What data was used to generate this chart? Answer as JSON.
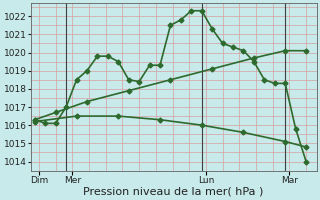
{
  "background_color": "#c8eaea",
  "grid_color": "#d4a0a0",
  "line_color": "#2d6a2d",
  "marker": "D",
  "markersize": 2.5,
  "linewidth": 1.2,
  "ylim": [
    1013.5,
    1022.7
  ],
  "yticks": [
    1014,
    1015,
    1016,
    1017,
    1018,
    1019,
    1020,
    1021,
    1022
  ],
  "xlabel": "Pression niveau de la mer( hPa )",
  "xlabel_fontsize": 8,
  "tick_fontsize": 6.5,
  "line1_x": [
    0,
    0.5,
    1.0,
    1.5,
    2.0,
    2.5,
    3.0,
    3.5,
    4.0,
    4.5,
    5.0,
    5.5,
    6.0,
    6.5,
    7.0,
    7.5,
    8.0,
    8.5,
    9.0,
    9.5,
    10.0,
    10.5,
    11.0,
    11.5,
    12.0,
    12.5,
    13.0
  ],
  "line1_y": [
    1016.3,
    1016.1,
    1016.1,
    1017.0,
    1018.5,
    1019.0,
    1019.8,
    1019.8,
    1019.5,
    1018.5,
    1018.4,
    1019.3,
    1019.3,
    1021.5,
    1021.8,
    1022.3,
    1022.3,
    1021.3,
    1020.5,
    1020.3,
    1020.1,
    1019.5,
    1018.5,
    1018.3,
    1018.3,
    1015.8,
    1014.0
  ],
  "line2_x": [
    0,
    1.0,
    2.5,
    4.5,
    6.5,
    8.5,
    10.5,
    12.0,
    13.0
  ],
  "line2_y": [
    1016.3,
    1016.7,
    1017.3,
    1017.9,
    1018.5,
    1019.1,
    1019.7,
    1020.1,
    1020.1
  ],
  "line3_x": [
    0,
    2.0,
    4.0,
    6.0,
    8.0,
    10.0,
    12.0,
    13.0
  ],
  "line3_y": [
    1016.2,
    1016.5,
    1016.5,
    1016.3,
    1016.0,
    1015.6,
    1015.1,
    1014.8
  ],
  "vline_positions": [
    1.5,
    8.0,
    12.0
  ],
  "xtick_positions": [
    0.2,
    1.8,
    8.2,
    12.2
  ],
  "xtick_labels": [
    "Dim",
    "Mer",
    "Lun",
    "Mar"
  ],
  "xlim": [
    -0.2,
    13.5
  ]
}
